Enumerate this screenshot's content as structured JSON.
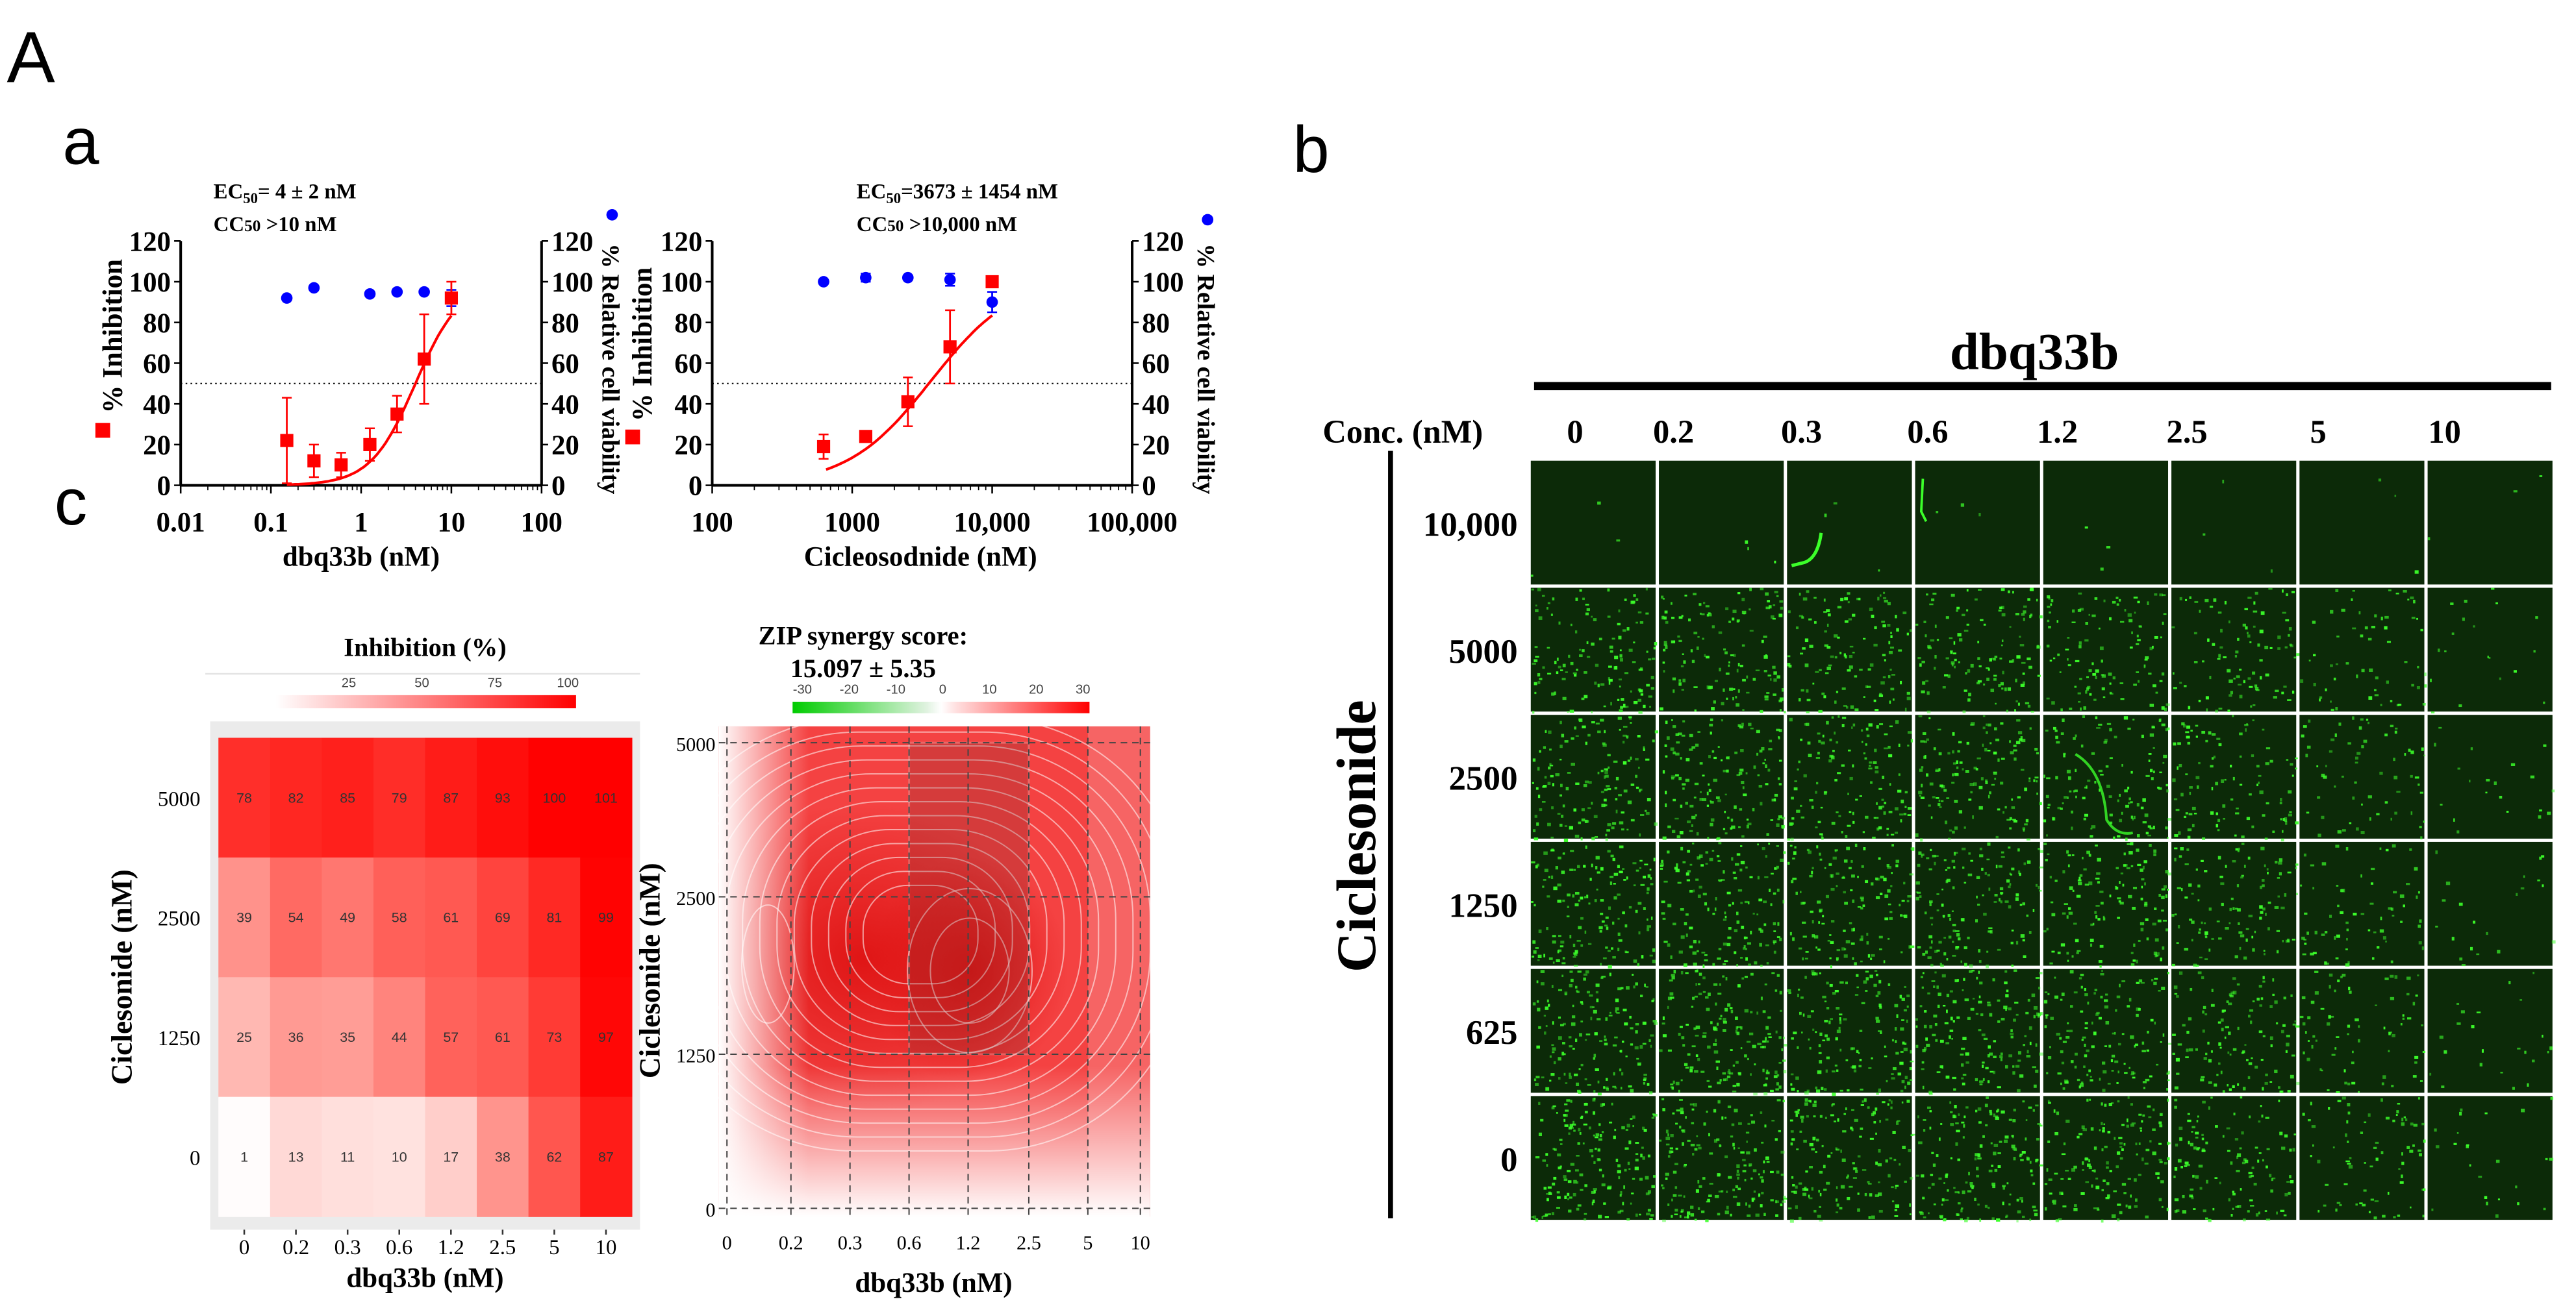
{
  "panel_labels": {
    "A": "A",
    "a": "a",
    "b": "b",
    "c": "c"
  },
  "chart_data": [
    {
      "id": "dose_response_dbq33b",
      "type": "scatter",
      "annotation": {
        "ec50_prefix": "EC",
        "ec50_sub": "50",
        "ec50_text": "= 4 ±  2 nM",
        "cc50_prefix": "CC",
        "cc50_sub": "50",
        "cc50_text": " >10 nM"
      },
      "xlabel": "dbq33b (nM)",
      "ylabel_left": "% Inhibition",
      "ylabel_right": "% Relative cell viability",
      "xscale": "log",
      "xlim": [
        0.01,
        100
      ],
      "xticks": [
        0.01,
        0.1,
        1,
        10,
        100
      ],
      "xtick_labels": [
        "0.01",
        "0.1",
        "1",
        "10",
        "100"
      ],
      "ylim": [
        0,
        120
      ],
      "yticks": [
        0,
        20,
        40,
        60,
        80,
        100,
        120
      ],
      "reference_line": 50,
      "series": [
        {
          "name": "% Inhibition",
          "color": "#ff0000",
          "marker": "square",
          "x": [
            0.15,
            0.3,
            0.6,
            1.25,
            2.5,
            5,
            10
          ],
          "y": [
            22,
            12,
            10,
            20,
            35,
            62,
            92
          ],
          "err": [
            21,
            8,
            6,
            8,
            9,
            22,
            8
          ],
          "fit": {
            "ec50": 4,
            "hill": 1.75,
            "top": 100,
            "bottom": 0,
            "xrange": [
              0.15,
              10
            ]
          }
        },
        {
          "name": "% Relative cell viability",
          "color": "#0000ff",
          "marker": "circle",
          "x": [
            0.15,
            0.3,
            1.25,
            2.5,
            5,
            10
          ],
          "y": [
            92,
            97,
            94,
            95,
            95,
            92
          ],
          "err": [
            1,
            1,
            1,
            1,
            1,
            4
          ]
        }
      ]
    },
    {
      "id": "dose_response_ciclesonide",
      "type": "scatter",
      "annotation": {
        "ec50_prefix": "EC",
        "ec50_sub": "50",
        "ec50_text": "=3673 ±  1454 nM",
        "cc50_prefix": "CC",
        "cc50_sub": "50",
        "cc50_text": " >10,000 nM"
      },
      "xlabel": "Cicleosodnide (nM)",
      "ylabel_left": "% Inhibition",
      "ylabel_right": "% Relative cell viability",
      "xscale": "log",
      "xlim": [
        100,
        100000
      ],
      "xticks": [
        100,
        1000,
        10000,
        100000
      ],
      "xtick_labels": [
        "100",
        "1000",
        "10,000",
        "100,000"
      ],
      "ylim": [
        0,
        120
      ],
      "yticks": [
        0,
        20,
        40,
        60,
        80,
        100,
        120
      ],
      "reference_line": 50,
      "series": [
        {
          "name": "% Inhibition",
          "color": "#ff0000",
          "marker": "square",
          "x": [
            625,
            1250,
            2500,
            5000,
            10000
          ],
          "y": [
            19,
            24,
            41,
            68,
            100
          ],
          "err": [
            6,
            1,
            12,
            18,
            0
          ],
          "fit": {
            "ec50": 3673,
            "hill": 1.45,
            "top": 103,
            "bottom": 0,
            "xrange": [
              650,
              10000
            ]
          }
        },
        {
          "name": "% Relative cell viability",
          "color": "#0000ff",
          "marker": "circle",
          "x": [
            625,
            1250,
            2500,
            5000,
            10000
          ],
          "y": [
            100,
            102,
            102,
            101,
            90
          ],
          "err": [
            1,
            2,
            1,
            3,
            5
          ]
        }
      ]
    },
    {
      "id": "inhibition_heatmap",
      "type": "heatmap",
      "title": "Inhibition (%)",
      "xlabel": "dbq33b (nM)",
      "ylabel": "Ciclesonide (nM)",
      "columns": [
        "0",
        "0.2",
        "0.3",
        "0.6",
        "1.2",
        "2.5",
        "5",
        "10"
      ],
      "rows": [
        "5000",
        "2500",
        "1250",
        "0"
      ],
      "values": [
        [
          78,
          82,
          85,
          79,
          87,
          93,
          100,
          101
        ],
        [
          39,
          54,
          49,
          58,
          61,
          69,
          81,
          99
        ],
        [
          25,
          36,
          35,
          44,
          57,
          61,
          73,
          97
        ],
        [
          1,
          13,
          11,
          10,
          17,
          38,
          62,
          87
        ]
      ],
      "colorbar": {
        "ticks": [
          "25",
          "50",
          "75",
          "100"
        ],
        "low_color": "#ffffff",
        "high_color": "#ff0000"
      }
    },
    {
      "id": "zip_synergy_map",
      "type": "heatmap",
      "title": "ZIP synergy score:",
      "score": "15.097 ± 5.35",
      "xlabel": "dbq33b (nM)",
      "ylabel": "Ciclesonide (nM)",
      "xticks": [
        "0",
        "0.2",
        "0.3",
        "0.6",
        "1.2",
        "2.5",
        "5",
        "10"
      ],
      "yticks": [
        "5000",
        "2500",
        "1250",
        "0"
      ],
      "highlight_region": {
        "x": [
          "0.6",
          "2.5"
        ],
        "y": [
          "1250",
          "5000"
        ]
      },
      "colorbar": {
        "ticks": [
          "-30",
          "-20",
          "-10",
          "0",
          "10",
          "20",
          "30"
        ],
        "low_color": "#00cc00",
        "high_color": "#ff0000"
      }
    }
  ],
  "micrographs": {
    "title": "dbq33b",
    "conc_label": "Conc. (nM)",
    "columns": [
      "0",
      "0.2",
      "0.3",
      "0.6",
      "1.2",
      "2.5",
      "5",
      "10"
    ],
    "row_axis_label": "Ciclesonide",
    "rows": [
      "10,000",
      "5000",
      "2500",
      "1250",
      "625",
      "0"
    ]
  }
}
